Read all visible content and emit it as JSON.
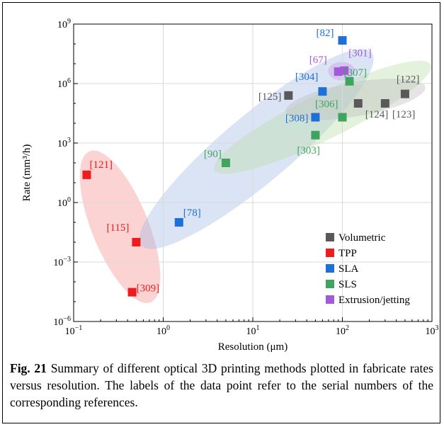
{
  "chart_data": {
    "type": "scatter",
    "xlabel": "Resolution (μm)",
    "ylabel": "Rate (mm³/h)",
    "xscale": "log",
    "yscale": "log",
    "xlim": [
      0.1,
      1000
    ],
    "ylim": [
      1e-06,
      1000000000
    ],
    "grid": true,
    "legend_position": "bottom-right",
    "x_ticks": [
      {
        "base": "10",
        "exp": "−1"
      },
      {
        "base": "10",
        "exp": "0"
      },
      {
        "base": "10",
        "exp": "1"
      },
      {
        "base": "10",
        "exp": "2"
      },
      {
        "base": "10",
        "exp": "3"
      }
    ],
    "y_ticks": [
      {
        "base": "10",
        "exp": "−6"
      },
      {
        "base": "10",
        "exp": "−3"
      },
      {
        "base": "10",
        "exp": "0"
      },
      {
        "base": "10",
        "exp": "3"
      },
      {
        "base": "10",
        "exp": "6"
      },
      {
        "base": "10",
        "exp": "9"
      }
    ],
    "series": [
      {
        "name": "Volumetric",
        "color": "#595959",
        "points": [
          {
            "x": 25,
            "y": 250000,
            "label": "[125]"
          },
          {
            "x": 150,
            "y": 100000,
            "label": "[124]"
          },
          {
            "x": 300,
            "y": 100000,
            "label": "[123]"
          },
          {
            "x": 500,
            "y": 300000,
            "label": "[122]"
          }
        ]
      },
      {
        "name": "TPP",
        "color": "#ee1c1c",
        "points": [
          {
            "x": 0.14,
            "y": 25,
            "label": "[121]"
          },
          {
            "x": 0.5,
            "y": 0.01,
            "label": "[115]"
          },
          {
            "x": 0.45,
            "y": 3e-05,
            "label": "[309]"
          }
        ]
      },
      {
        "name": "SLA",
        "color": "#1f6fd8",
        "points": [
          {
            "x": 100,
            "y": 150000000,
            "label": "[82]"
          },
          {
            "x": 60,
            "y": 400000,
            "label": "[304]"
          },
          {
            "x": 50,
            "y": 20000,
            "label": "[308]"
          },
          {
            "x": 1.5,
            "y": 0.1,
            "label": "[78]"
          }
        ]
      },
      {
        "name": "SLS",
        "color": "#3ea45e",
        "points": [
          {
            "x": 120,
            "y": 1300000,
            "label": "[307]"
          },
          {
            "x": 100,
            "y": 20000,
            "label": "[306]"
          },
          {
            "x": 50,
            "y": 2500,
            "label": "[303]"
          },
          {
            "x": 5,
            "y": 100,
            "label": "[90]"
          }
        ]
      },
      {
        "name": "Extrusion/jetting",
        "color": "#a35ad6",
        "points": [
          {
            "x": 90,
            "y": 4000000,
            "label": "[67]"
          },
          {
            "x": 105,
            "y": 4500000,
            "label": "[301]"
          }
        ]
      }
    ]
  },
  "caption": {
    "fig_label": "Fig. 21",
    "text": " Summary of different optical 3D printing methods plotted in fabricate rates versus resolution. The labels of the data point refer to the serial numbers of the corresponding references."
  }
}
